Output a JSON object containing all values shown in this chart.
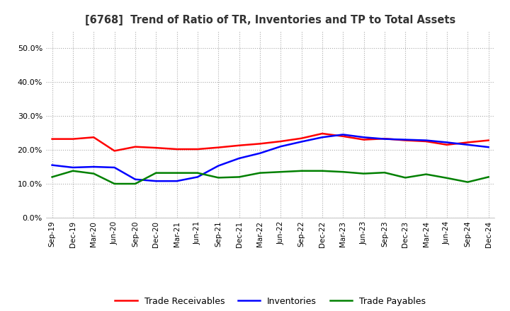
{
  "title": "[6768]  Trend of Ratio of TR, Inventories and TP to Total Assets",
  "x_labels": [
    "Sep-19",
    "Dec-19",
    "Mar-20",
    "Jun-20",
    "Sep-20",
    "Dec-20",
    "Mar-21",
    "Jun-21",
    "Sep-21",
    "Dec-21",
    "Mar-22",
    "Jun-22",
    "Sep-22",
    "Dec-22",
    "Mar-23",
    "Jun-23",
    "Sep-23",
    "Dec-23",
    "Mar-24",
    "Jun-24",
    "Sep-24",
    "Dec-24"
  ],
  "trade_receivables": [
    0.232,
    0.232,
    0.237,
    0.197,
    0.209,
    0.206,
    0.202,
    0.202,
    0.207,
    0.213,
    0.218,
    0.225,
    0.234,
    0.248,
    0.24,
    0.23,
    0.233,
    0.228,
    0.225,
    0.215,
    0.222,
    0.228
  ],
  "inventories": [
    0.155,
    0.148,
    0.15,
    0.148,
    0.113,
    0.108,
    0.108,
    0.12,
    0.153,
    0.175,
    0.19,
    0.21,
    0.224,
    0.237,
    0.245,
    0.237,
    0.232,
    0.23,
    0.228,
    0.222,
    0.215,
    0.208
  ],
  "trade_payables": [
    0.12,
    0.138,
    0.13,
    0.1,
    0.1,
    0.132,
    0.132,
    0.132,
    0.118,
    0.12,
    0.132,
    0.135,
    0.138,
    0.138,
    0.135,
    0.13,
    0.133,
    0.118,
    0.128,
    0.117,
    0.105,
    0.12
  ],
  "tr_color": "#FF0000",
  "inv_color": "#0000FF",
  "tp_color": "#008000",
  "ylim": [
    0.0,
    0.55
  ],
  "yticks": [
    0.0,
    0.1,
    0.2,
    0.3,
    0.4,
    0.5
  ],
  "background_color": "#FFFFFF",
  "grid_color": "#AAAAAA"
}
